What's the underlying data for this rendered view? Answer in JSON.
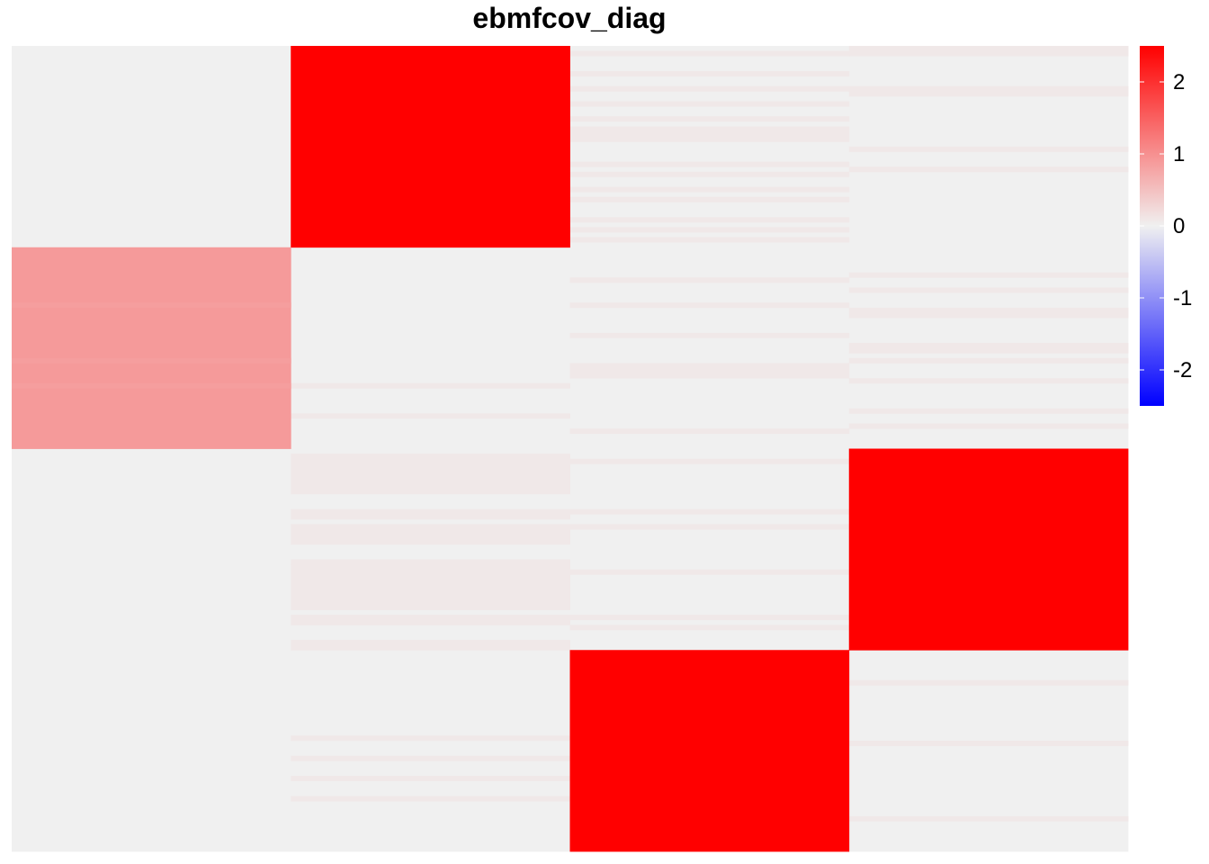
{
  "chart_data": {
    "type": "heatmap",
    "title": "ebmfcov_diag",
    "xlabel": "",
    "ylabel": "",
    "columns": 4,
    "row_blocks": 4,
    "rows_per_block": 40,
    "base_value": 0,
    "color_scale": {
      "low": "#0000FF",
      "mid": "#F0F0F0",
      "high": "#FF0000",
      "min": -2.5,
      "max": 2.5
    },
    "colorbar_ticks": [
      "2",
      "1",
      "0",
      "-1",
      "-2"
    ],
    "colorbar_tick_values": [
      2,
      1,
      0,
      -1,
      -2
    ],
    "blocks": [
      {
        "row_block": 0,
        "column": 1,
        "value": 2.5
      },
      {
        "row_block": 1,
        "column": 0,
        "value": 0.9
      },
      {
        "row_block": 2,
        "column": 3,
        "value": 2.5
      },
      {
        "row_block": 3,
        "column": 2,
        "value": 2.5
      }
    ],
    "row_variation": [
      {
        "row_block": 1,
        "column": 0,
        "rows": [
          11,
          22,
          27
        ],
        "value": 0.85
      }
    ],
    "faint_rows": [
      {
        "row_block": 0,
        "column": 2,
        "value": 0.08,
        "rows": [
          1,
          5,
          8,
          11,
          14,
          16,
          17,
          18,
          23,
          25,
          28,
          30,
          34,
          36,
          38
        ]
      },
      {
        "row_block": 0,
        "column": 3,
        "value": 0.08,
        "rows": [
          0,
          1,
          8,
          9,
          20,
          24
        ]
      },
      {
        "row_block": 1,
        "column": 1,
        "value": 0.08,
        "rows": [
          27,
          33
        ]
      },
      {
        "row_block": 1,
        "column": 2,
        "value": 0.08,
        "rows": [
          6,
          11,
          17,
          23,
          24,
          25,
          36
        ]
      },
      {
        "row_block": 1,
        "column": 3,
        "value": 0.08,
        "rows": [
          5,
          8,
          12,
          13,
          19,
          20,
          22,
          26,
          32,
          35
        ]
      },
      {
        "row_block": 2,
        "column": 1,
        "value": 0.08,
        "rows": [
          1,
          2,
          3,
          4,
          5,
          6,
          7,
          8,
          12,
          13,
          15,
          16,
          17,
          18,
          22,
          23,
          24,
          25,
          26,
          27,
          28,
          29,
          30,
          31,
          33,
          34,
          38,
          39
        ]
      },
      {
        "row_block": 2,
        "column": 2,
        "value": 0.08,
        "rows": [
          2,
          12,
          15,
          24,
          33,
          35
        ]
      },
      {
        "row_block": 3,
        "column": 1,
        "value": 0.08,
        "rows": [
          17,
          21,
          25,
          29
        ]
      },
      {
        "row_block": 3,
        "column": 3,
        "value": 0.08,
        "rows": [
          6,
          18,
          33
        ]
      }
    ]
  }
}
